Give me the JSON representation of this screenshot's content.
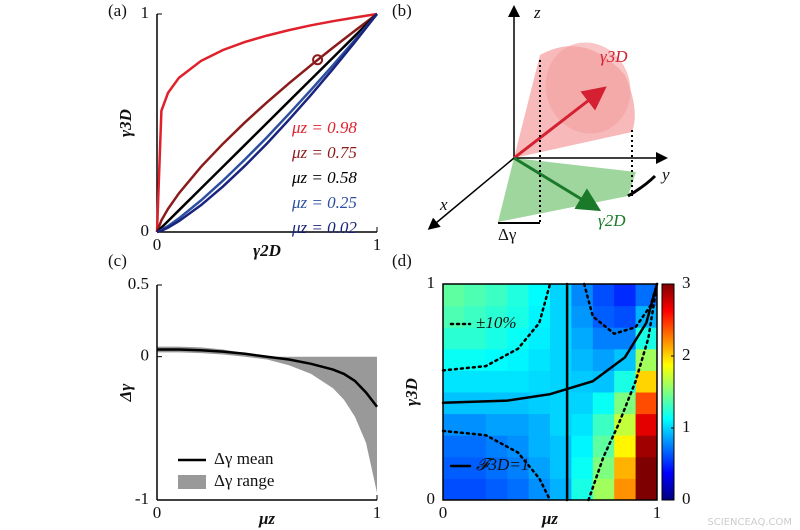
{
  "chart_data": [
    {
      "type": "line",
      "panel": "(a)",
      "xlabel": "γ2D",
      "ylabel": "γ3D",
      "xlim": [
        0,
        1
      ],
      "ylim": [
        0,
        1
      ],
      "xticks": [
        0,
        1
      ],
      "yticks": [
        0,
        1
      ],
      "x": [
        0,
        0.02,
        0.05,
        0.1,
        0.2,
        0.3,
        0.4,
        0.5,
        0.6,
        0.7,
        0.8,
        0.9,
        1
      ],
      "series": [
        {
          "name": "μz = 0.98",
          "color": "#e0202a",
          "values": [
            0,
            0.556,
            0.638,
            0.708,
            0.785,
            0.835,
            0.872,
            0.901,
            0.926,
            0.948,
            0.967,
            0.984,
            1
          ]
        },
        {
          "name": "μz = 0.75",
          "color": "#8b1a1a",
          "values": [
            0,
            0.053,
            0.106,
            0.178,
            0.299,
            0.405,
            0.503,
            0.595,
            0.682,
            0.765,
            0.846,
            0.924,
            1
          ]
        },
        {
          "name": "μz = 0.58",
          "color": "#000000",
          "values": [
            0,
            0.02,
            0.05,
            0.1,
            0.2,
            0.3,
            0.4,
            0.5,
            0.6,
            0.7,
            0.8,
            0.9,
            1
          ]
        },
        {
          "name": "μz = 0.25",
          "color": "#2c4fa0",
          "values": [
            0,
            0.009,
            0.027,
            0.063,
            0.145,
            0.236,
            0.333,
            0.435,
            0.542,
            0.652,
            0.765,
            0.881,
            1
          ]
        },
        {
          "name": "μz = 0.02",
          "color": "#1a237e",
          "values": [
            0,
            0.006,
            0.02,
            0.05,
            0.123,
            0.209,
            0.304,
            0.406,
            0.515,
            0.629,
            0.748,
            0.872,
            1
          ]
        }
      ],
      "highlight": {
        "x": 0.73,
        "y": 0.79,
        "color": "#8b1a1a"
      }
    },
    {
      "type": "diagram",
      "panel": "(b)",
      "labels": {
        "z": "z",
        "y": "y",
        "x": "x",
        "cone_3d": "γ3D",
        "cone_2d": "γ2D",
        "delta": "Δγ"
      }
    },
    {
      "type": "area",
      "panel": "(c)",
      "xlabel": "μz",
      "ylabel": "Δγ",
      "xlim": [
        0,
        1
      ],
      "ylim": [
        -1,
        0.5
      ],
      "xticks": [
        0,
        1
      ],
      "yticks": [
        -1,
        0,
        0.5
      ],
      "x": [
        0,
        0.1,
        0.2,
        0.3,
        0.4,
        0.5,
        0.6,
        0.7,
        0.8,
        0.85,
        0.9,
        0.95,
        1
      ],
      "series": [
        {
          "name": "Δγ mean",
          "color": "#000000",
          "values": [
            0.05,
            0.05,
            0.045,
            0.035,
            0.02,
            0,
            -0.02,
            -0.05,
            -0.09,
            -0.12,
            -0.17,
            -0.25,
            -0.35
          ]
        },
        {
          "name": "Δγ range",
          "color": "#999999",
          "upper": [
            0.07,
            0.07,
            0.065,
            0.05,
            0.025,
            0,
            0,
            0,
            0,
            0,
            0,
            0,
            0
          ],
          "lower": [
            0.03,
            0.03,
            0.025,
            0.015,
            0,
            -0.02,
            -0.06,
            -0.12,
            -0.22,
            -0.3,
            -0.42,
            -0.6,
            -0.95
          ]
        }
      ]
    },
    {
      "type": "heatmap",
      "panel": "(d)",
      "xlabel": "μz",
      "ylabel": "γ3D",
      "xlim": [
        0,
        1
      ],
      "ylim": [
        0,
        1
      ],
      "xticks": [
        0,
        1
      ],
      "yticks": [
        0,
        1
      ],
      "clim": [
        0,
        3
      ],
      "cticks": [
        0,
        1,
        2,
        3
      ],
      "colormap": [
        "#00007f",
        "#0000ff",
        "#007fff",
        "#00ffff",
        "#7fff7f",
        "#ffff00",
        "#ff7f00",
        "#ff0000",
        "#7f0000"
      ],
      "x": [
        0.05,
        0.15,
        0.25,
        0.35,
        0.45,
        0.55,
        0.65,
        0.75,
        0.85,
        0.95
      ],
      "y": [
        0.05,
        0.15,
        0.25,
        0.35,
        0.45,
        0.55,
        0.65,
        0.75,
        0.85,
        0.95
      ],
      "z": [
        [
          0.6,
          0.6,
          0.65,
          0.7,
          0.8,
          0.9,
          1.2,
          1.6,
          2.2,
          3
        ],
        [
          0.65,
          0.65,
          0.7,
          0.75,
          0.85,
          0.95,
          1.15,
          1.5,
          2.1,
          3
        ],
        [
          0.7,
          0.7,
          0.75,
          0.8,
          0.9,
          0.95,
          1.1,
          1.4,
          1.9,
          2.9
        ],
        [
          0.8,
          0.8,
          0.85,
          0.85,
          0.9,
          1.0,
          1.05,
          1.3,
          1.7,
          2.7
        ],
        [
          0.95,
          0.95,
          0.95,
          0.95,
          0.98,
          1.0,
          1.0,
          1.15,
          1.5,
          2.4
        ],
        [
          1.05,
          1.05,
          1.05,
          1.05,
          1.02,
          1.0,
          0.97,
          0.95,
          1.2,
          2.0
        ],
        [
          1.15,
          1.15,
          1.12,
          1.1,
          1.05,
          1.0,
          0.92,
          0.85,
          0.95,
          1.6
        ],
        [
          1.25,
          1.25,
          1.2,
          1.15,
          1.08,
          1.0,
          0.88,
          0.75,
          0.75,
          1.2
        ],
        [
          1.35,
          1.3,
          1.25,
          1.2,
          1.1,
          1.0,
          0.82,
          0.65,
          0.6,
          0.9
        ],
        [
          1.4,
          1.35,
          1.3,
          1.22,
          1.12,
          1.0,
          0.78,
          0.6,
          0.5,
          0.7
        ]
      ],
      "lines": [
        {
          "name": "±10%",
          "style": "dotted",
          "x": [
            0,
            0.2,
            0.35,
            0.45,
            0.5,
            null,
            0,
            0.2,
            0.35,
            0.45,
            0.5,
            null,
            0.66,
            0.7,
            0.8,
            0.9,
            0.97,
            1,
            null,
            0.68,
            0.75,
            0.82,
            0.9,
            0.96,
            1
          ],
          "y": [
            0.6,
            0.62,
            0.7,
            0.82,
            1,
            null,
            0.32,
            0.3,
            0.22,
            0.1,
            0,
            null,
            1,
            0.85,
            0.77,
            0.8,
            0.9,
            1,
            null,
            0,
            0.2,
            0.35,
            0.55,
            0.75,
            1
          ]
        },
        {
          "name": "𝓕3D=1",
          "style": "solid",
          "x": [
            0.58,
            0.58,
            null,
            0,
            0.3,
            0.5,
            0.7,
            0.85,
            0.95,
            1
          ],
          "y": [
            0,
            1,
            null,
            0.45,
            0.46,
            0.49,
            0.55,
            0.66,
            0.82,
            1
          ]
        }
      ]
    }
  ],
  "watermark": "SCIENCEAQ.COM"
}
